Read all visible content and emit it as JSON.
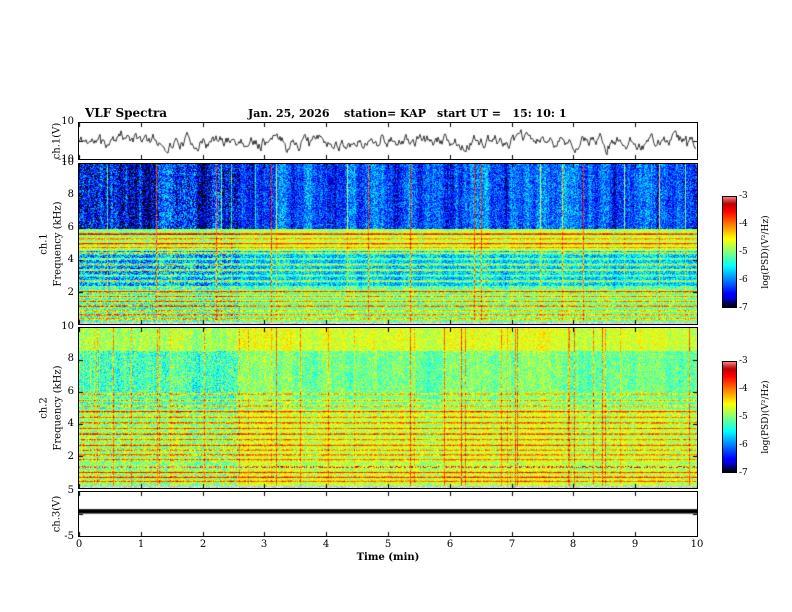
{
  "header": {
    "title": "VLF Spectra",
    "date": "Jan. 25, 2026",
    "station": "station= KAP",
    "start_ut": "start UT =   15: 10: 1"
  },
  "xaxis": {
    "label": "Time (min)",
    "min": 0,
    "max": 10,
    "ticks": [
      0,
      1,
      2,
      3,
      4,
      5,
      6,
      7,
      8,
      9,
      10
    ]
  },
  "colorbar": {
    "label": "log(PSD)(V²/Hz)",
    "ticks": [
      -3,
      -4,
      -5,
      -6,
      -7
    ],
    "value_range": [
      -7,
      -3
    ],
    "colormap": "jet"
  },
  "colors": {
    "background": "#ffffff",
    "axis": "#000000",
    "waveform": "#000000"
  },
  "chart_data": [
    {
      "type": "line",
      "name": "ch1-voltage",
      "ylabel": "ch.1(V)",
      "ylim": [
        -10,
        10
      ],
      "yticks": [
        10,
        -10
      ],
      "line_color": "#000000",
      "signal": {
        "kind": "noisy waveform",
        "mean_V": 0,
        "typical_amplitude_V": 5,
        "peak_amplitude_V": 9,
        "seed": 11
      }
    },
    {
      "type": "heatmap",
      "name": "ch1-spectrogram",
      "channel": "ch.1",
      "ylabel": "Frequency (kHz)",
      "ylim_khz": [
        0,
        10
      ],
      "yticks": [
        10,
        8,
        6,
        4,
        2
      ],
      "value_range_log_psd": [
        -7,
        -3
      ],
      "gray_below_khz": 0.18,
      "segment_boundary_min": 2.6,
      "left_contrast": 1.35,
      "left_offset": -0.1,
      "regions": [
        {
          "f_khz": [
            6,
            10.01
          ],
          "base": -6.2,
          "noise": 0.5,
          "streak_gain": 1.6
        },
        {
          "f_khz": [
            4.6,
            6
          ],
          "base": -4.8,
          "noise": 0.25,
          "streak_gain": 0.5
        },
        {
          "f_khz": [
            2.3,
            4.6
          ],
          "base": -5.7,
          "noise": 0.5,
          "streak_gain": 0.7
        },
        {
          "f_khz": [
            0.18,
            2.3
          ],
          "base": -5.1,
          "noise": 0.4,
          "streak_gain": 0.5
        }
      ],
      "bands_khz_amp": [
        [
          5.65,
          1.5
        ],
        [
          5.35,
          0.9
        ],
        [
          5.05,
          1.2
        ],
        [
          4.8,
          0.8
        ],
        [
          4.45,
          1.3
        ],
        [
          4.1,
          0.9
        ],
        [
          3.75,
          1.1
        ],
        [
          3.4,
          1.4
        ],
        [
          3.05,
          0.8
        ],
        [
          2.7,
          1.2
        ],
        [
          2.35,
          0.9
        ],
        [
          2.05,
          1.6
        ],
        [
          1.75,
          1.0
        ],
        [
          1.45,
          1.2
        ],
        [
          1.15,
          1.5
        ],
        [
          0.85,
          1.0
        ],
        [
          0.6,
          1.3
        ],
        [
          0.35,
          1.1
        ]
      ],
      "seed": 21
    },
    {
      "type": "heatmap",
      "name": "ch2-spectrogram",
      "channel": "ch.2",
      "ylabel": "Frequency (kHz)",
      "ylim_khz": [
        0,
        10
      ],
      "yticks": [
        10,
        8,
        6,
        4,
        2
      ],
      "value_range_log_psd": [
        -7,
        -3
      ],
      "gray_below_khz": 0.18,
      "segment_boundary_min": 2.6,
      "left_contrast": 1.3,
      "left_offset": -0.15,
      "regions": [
        {
          "f_khz": [
            8.6,
            10.01
          ],
          "base": -4.65,
          "noise": 0.3,
          "streak_gain": 0.5
        },
        {
          "f_khz": [
            5.0,
            8.6
          ],
          "base": -5.05,
          "noise": 0.4,
          "streak_gain": 0.6
        },
        {
          "f_khz": [
            0.18,
            5.0
          ],
          "base": -4.8,
          "noise": 0.35,
          "streak_gain": 0.5
        }
      ],
      "bands_khz_amp": [
        [
          5.9,
          1.0
        ],
        [
          5.5,
          0.8
        ],
        [
          5.15,
          1.0
        ],
        [
          4.8,
          1.2
        ],
        [
          4.45,
          0.9
        ],
        [
          4.1,
          1.1
        ],
        [
          3.75,
          0.9
        ],
        [
          3.4,
          1.2
        ],
        [
          3.05,
          0.9
        ],
        [
          2.7,
          1.1
        ],
        [
          2.4,
          0.9
        ],
        [
          2.1,
          1.0
        ],
        [
          1.8,
          0.9
        ],
        [
          1.35,
          2.2
        ],
        [
          1.0,
          1.1
        ],
        [
          0.7,
          1.3
        ],
        [
          0.45,
          1.0
        ]
      ],
      "seed": 22
    },
    {
      "type": "line",
      "name": "ch3-voltage",
      "ylabel": "ch.3(V)",
      "ylim": [
        -5,
        5
      ],
      "yticks": [
        5,
        -5
      ],
      "line_color": "#000000",
      "signal": {
        "kind": "constant band",
        "value_V": 0.6,
        "thickness_V": 1.0
      }
    }
  ]
}
